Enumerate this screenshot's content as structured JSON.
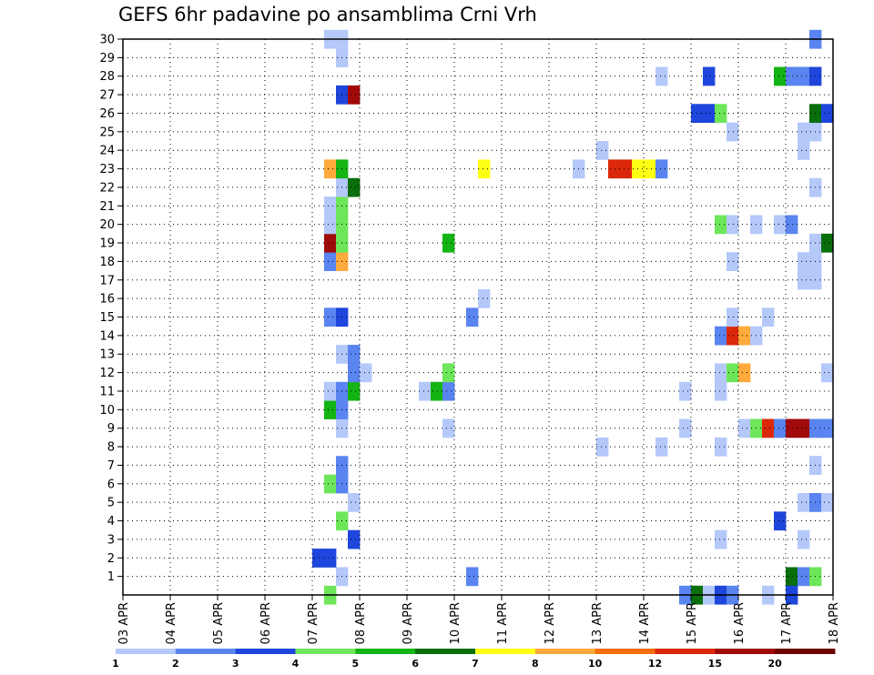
{
  "chart_data": {
    "type": "heatmap",
    "title": "GEFS 6hr padavine po ansamblima Crni Vrh",
    "x_tick_labels": [
      "03 APR",
      "04 APR",
      "05 APR",
      "06 APR",
      "07 APR",
      "08 APR",
      "09 APR",
      "10 APR",
      "11 APR",
      "12 APR",
      "13 APR",
      "14 APR",
      "15 APR",
      "16 APR",
      "17 APR",
      "18 APR"
    ],
    "y_tick_labels": [
      "1",
      "2",
      "3",
      "4",
      "5",
      "6",
      "7",
      "8",
      "9",
      "10",
      "11",
      "12",
      "13",
      "14",
      "15",
      "16",
      "17",
      "18",
      "19",
      "20",
      "21",
      "22",
      "23",
      "24",
      "25",
      "26",
      "27",
      "28",
      "29",
      "30"
    ],
    "x_range": [
      "03 APR",
      "18 APR"
    ],
    "y_range": [
      0,
      30
    ],
    "grid": true,
    "legend": {
      "placement": "bottom",
      "labels": [
        "1",
        "2",
        "3",
        "4",
        "5",
        "6",
        "7",
        "8",
        "10",
        "12",
        "15",
        "20"
      ],
      "colors": [
        "#b4c8fa",
        "#5a84f0",
        "#1e46dc",
        "#6ee65a",
        "#14b414",
        "#0a6e0a",
        "#ffff14",
        "#ffaa3c",
        "#f56e0a",
        "#dc280a",
        "#a00a0a",
        "#6e0000"
      ]
    },
    "cells": [
      {
        "day": 7.25,
        "member": 0,
        "color": "#6ee65a"
      },
      {
        "day": 7.5,
        "member": 1,
        "color": "#b4c8fa"
      },
      {
        "day": 7.0,
        "member": 2,
        "color": "#1e46dc"
      },
      {
        "day": 7.25,
        "member": 2,
        "color": "#1e46dc"
      },
      {
        "day": 7.75,
        "member": 3,
        "color": "#1e46dc"
      },
      {
        "day": 7.5,
        "member": 4,
        "color": "#6ee65a"
      },
      {
        "day": 7.75,
        "member": 5,
        "color": "#b4c8fa"
      },
      {
        "day": 7.25,
        "member": 6,
        "color": "#6ee65a"
      },
      {
        "day": 7.5,
        "member": 6,
        "color": "#5a84f0"
      },
      {
        "day": 7.5,
        "member": 7,
        "color": "#5a84f0"
      },
      {
        "day": 7.5,
        "member": 9,
        "color": "#b4c8fa"
      },
      {
        "day": 7.25,
        "member": 10,
        "color": "#14b414"
      },
      {
        "day": 7.5,
        "member": 10,
        "color": "#5a84f0"
      },
      {
        "day": 7.25,
        "member": 11,
        "color": "#b4c8fa"
      },
      {
        "day": 7.5,
        "member": 11,
        "color": "#5a84f0"
      },
      {
        "day": 7.75,
        "member": 11,
        "color": "#14b414"
      },
      {
        "day": 7.75,
        "member": 12,
        "color": "#5a84f0"
      },
      {
        "day": 8.0,
        "member": 12,
        "color": "#b4c8fa"
      },
      {
        "day": 7.5,
        "member": 13,
        "color": "#b4c8fa"
      },
      {
        "day": 7.75,
        "member": 13,
        "color": "#5a84f0"
      },
      {
        "day": 7.25,
        "member": 15,
        "color": "#5a84f0"
      },
      {
        "day": 7.5,
        "member": 15,
        "color": "#1e46dc"
      },
      {
        "day": 7.25,
        "member": 18,
        "color": "#5a84f0"
      },
      {
        "day": 7.5,
        "member": 18,
        "color": "#ffaa3c"
      },
      {
        "day": 7.25,
        "member": 19,
        "color": "#a00a0a"
      },
      {
        "day": 7.5,
        "member": 19,
        "color": "#6ee65a"
      },
      {
        "day": 7.25,
        "member": 20,
        "color": "#b4c8fa"
      },
      {
        "day": 7.5,
        "member": 20,
        "color": "#6ee65a"
      },
      {
        "day": 7.25,
        "member": 21,
        "color": "#b4c8fa"
      },
      {
        "day": 7.5,
        "member": 21,
        "color": "#6ee65a"
      },
      {
        "day": 7.5,
        "member": 22,
        "color": "#b4c8fa"
      },
      {
        "day": 7.75,
        "member": 22,
        "color": "#0a6e0a"
      },
      {
        "day": 7.25,
        "member": 23,
        "color": "#ffaa3c"
      },
      {
        "day": 7.5,
        "member": 23,
        "color": "#14b414"
      },
      {
        "day": 7.5,
        "member": 27,
        "color": "#1e46dc"
      },
      {
        "day": 7.75,
        "member": 27,
        "color": "#a00a0a"
      },
      {
        "day": 7.5,
        "member": 29,
        "color": "#b4c8fa"
      },
      {
        "day": 7.25,
        "member": 30,
        "color": "#b4c8fa"
      },
      {
        "day": 7.5,
        "member": 30,
        "color": "#b4c8fa"
      },
      {
        "day": 9.75,
        "member": 9,
        "color": "#b4c8fa"
      },
      {
        "day": 9.25,
        "member": 11,
        "color": "#b4c8fa"
      },
      {
        "day": 9.5,
        "member": 11,
        "color": "#14b414"
      },
      {
        "day": 9.75,
        "member": 11,
        "color": "#5a84f0"
      },
      {
        "day": 9.75,
        "member": 12,
        "color": "#6ee65a"
      },
      {
        "day": 9.75,
        "member": 19,
        "color": "#14b414"
      },
      {
        "day": 10.25,
        "member": 1,
        "color": "#5a84f0"
      },
      {
        "day": 10.25,
        "member": 15,
        "color": "#5a84f0"
      },
      {
        "day": 10.5,
        "member": 16,
        "color": "#b4c8fa"
      },
      {
        "day": 10.5,
        "member": 23,
        "color": "#ffff14"
      },
      {
        "day": 12.5,
        "member": 23,
        "color": "#b4c8fa"
      },
      {
        "day": 13.0,
        "member": 8,
        "color": "#b4c8fa"
      },
      {
        "day": 13.0,
        "member": 24,
        "color": "#b4c8fa"
      },
      {
        "day": 13.25,
        "member": 23,
        "color": "#dc280a"
      },
      {
        "day": 13.5,
        "member": 23,
        "color": "#dc280a"
      },
      {
        "day": 13.75,
        "member": 23,
        "color": "#ffff14"
      },
      {
        "day": 14.0,
        "member": 23,
        "color": "#ffff14"
      },
      {
        "day": 14.25,
        "member": 23,
        "color": "#5a84f0"
      },
      {
        "day": 14.25,
        "member": 8,
        "color": "#b4c8fa"
      },
      {
        "day": 14.25,
        "member": 28,
        "color": "#b4c8fa"
      },
      {
        "day": 14.75,
        "member": 0,
        "color": "#5a84f0"
      },
      {
        "day": 15.0,
        "member": 0,
        "color": "#0a6e0a"
      },
      {
        "day": 15.25,
        "member": 0,
        "color": "#b4c8fa"
      },
      {
        "day": 15.5,
        "member": 0,
        "color": "#1e46dc"
      },
      {
        "day": 15.75,
        "member": 0,
        "color": "#5a84f0"
      },
      {
        "day": 14.75,
        "member": 9,
        "color": "#b4c8fa"
      },
      {
        "day": 14.75,
        "member": 11,
        "color": "#b4c8fa"
      },
      {
        "day": 15.0,
        "member": 26,
        "color": "#1e46dc"
      },
      {
        "day": 15.25,
        "member": 26,
        "color": "#1e46dc"
      },
      {
        "day": 15.5,
        "member": 26,
        "color": "#6ee65a"
      },
      {
        "day": 15.25,
        "member": 28,
        "color": "#1e46dc"
      },
      {
        "day": 15.5,
        "member": 3,
        "color": "#b4c8fa"
      },
      {
        "day": 15.5,
        "member": 8,
        "color": "#b4c8fa"
      },
      {
        "day": 15.5,
        "member": 11,
        "color": "#b4c8fa"
      },
      {
        "day": 15.5,
        "member": 12,
        "color": "#b4c8fa"
      },
      {
        "day": 15.75,
        "member": 12,
        "color": "#6ee65a"
      },
      {
        "day": 16.0,
        "member": 12,
        "color": "#ffaa3c"
      },
      {
        "day": 15.5,
        "member": 14,
        "color": "#5a84f0"
      },
      {
        "day": 15.75,
        "member": 14,
        "color": "#dc280a"
      },
      {
        "day": 16.0,
        "member": 14,
        "color": "#ffaa3c"
      },
      {
        "day": 16.25,
        "member": 14,
        "color": "#b4c8fa"
      },
      {
        "day": 15.75,
        "member": 15,
        "color": "#b4c8fa"
      },
      {
        "day": 15.75,
        "member": 18,
        "color": "#b4c8fa"
      },
      {
        "day": 15.5,
        "member": 20,
        "color": "#6ee65a"
      },
      {
        "day": 15.75,
        "member": 20,
        "color": "#b4c8fa"
      },
      {
        "day": 15.75,
        "member": 25,
        "color": "#b4c8fa"
      },
      {
        "day": 16.0,
        "member": 9,
        "color": "#b4c8fa"
      },
      {
        "day": 16.25,
        "member": 9,
        "color": "#6ee65a"
      },
      {
        "day": 16.5,
        "member": 9,
        "color": "#dc280a"
      },
      {
        "day": 16.75,
        "member": 9,
        "color": "#5a84f0"
      },
      {
        "day": 17.0,
        "member": 9,
        "color": "#a00a0a"
      },
      {
        "day": 17.25,
        "member": 9,
        "color": "#a00a0a"
      },
      {
        "day": 17.5,
        "member": 9,
        "color": "#5a84f0"
      },
      {
        "day": 17.75,
        "member": 9,
        "color": "#5a84f0"
      },
      {
        "day": 16.25,
        "member": 20,
        "color": "#b4c8fa"
      },
      {
        "day": 16.5,
        "member": 15,
        "color": "#b4c8fa"
      },
      {
        "day": 16.5,
        "member": 0,
        "color": "#b4c8fa"
      },
      {
        "day": 16.75,
        "member": 20,
        "color": "#b4c8fa"
      },
      {
        "day": 17.0,
        "member": 20,
        "color": "#5a84f0"
      },
      {
        "day": 16.75,
        "member": 4,
        "color": "#1e46dc"
      },
      {
        "day": 16.75,
        "member": 28,
        "color": "#14b414"
      },
      {
        "day": 17.0,
        "member": 28,
        "color": "#5a84f0"
      },
      {
        "day": 17.25,
        "member": 28,
        "color": "#5a84f0"
      },
      {
        "day": 17.5,
        "member": 28,
        "color": "#1e46dc"
      },
      {
        "day": 17.0,
        "member": 1,
        "color": "#0a6e0a"
      },
      {
        "day": 17.25,
        "member": 1,
        "color": "#5a84f0"
      },
      {
        "day": 17.5,
        "member": 1,
        "color": "#6ee65a"
      },
      {
        "day": 17.0,
        "member": 0,
        "color": "#1e46dc"
      },
      {
        "day": 17.25,
        "member": 3,
        "color": "#b4c8fa"
      },
      {
        "day": 17.25,
        "member": 5,
        "color": "#b4c8fa"
      },
      {
        "day": 17.5,
        "member": 5,
        "color": "#5a84f0"
      },
      {
        "day": 17.75,
        "member": 5,
        "color": "#b4c8fa"
      },
      {
        "day": 17.5,
        "member": 7,
        "color": "#b4c8fa"
      },
      {
        "day": 17.75,
        "member": 12,
        "color": "#b4c8fa"
      },
      {
        "day": 17.25,
        "member": 17,
        "color": "#b4c8fa"
      },
      {
        "day": 17.5,
        "member": 17,
        "color": "#b4c8fa"
      },
      {
        "day": 17.25,
        "member": 18,
        "color": "#b4c8fa"
      },
      {
        "day": 17.5,
        "member": 18,
        "color": "#b4c8fa"
      },
      {
        "day": 17.5,
        "member": 19,
        "color": "#b4c8fa"
      },
      {
        "day": 17.75,
        "member": 19,
        "color": "#0a6e0a"
      },
      {
        "day": 17.5,
        "member": 22,
        "color": "#b4c8fa"
      },
      {
        "day": 17.25,
        "member": 24,
        "color": "#b4c8fa"
      },
      {
        "day": 17.25,
        "member": 25,
        "color": "#b4c8fa"
      },
      {
        "day": 17.5,
        "member": 25,
        "color": "#b4c8fa"
      },
      {
        "day": 17.5,
        "member": 26,
        "color": "#0a6e0a"
      },
      {
        "day": 17.75,
        "member": 26,
        "color": "#1e46dc"
      },
      {
        "day": 17.5,
        "member": 30,
        "color": "#5a84f0"
      }
    ]
  }
}
